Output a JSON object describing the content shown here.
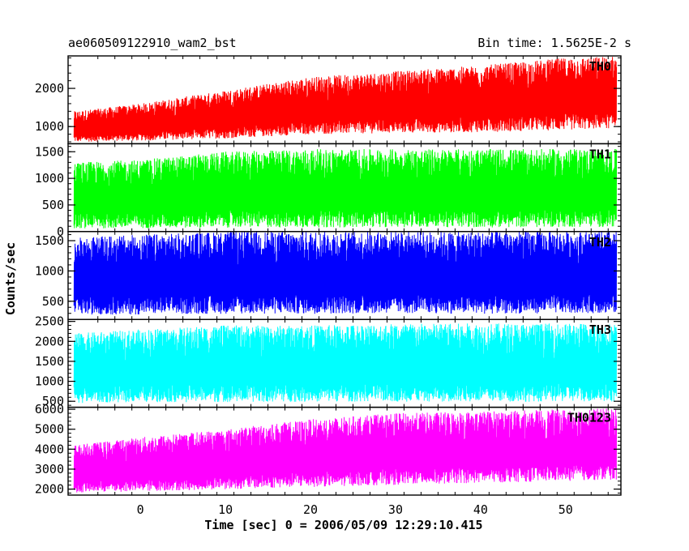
{
  "header": {
    "left_title": "ae060509122910_wam2_bst",
    "right_title": "Bin time: 1.5625E-2 s"
  },
  "axes": {
    "xlabel": "Time [sec] 0 = 2006/05/09 12:29:10.415",
    "ylabel": "Counts/sec"
  },
  "chart_data": {
    "type": "line",
    "x_range": [
      -8.5,
      56.5
    ],
    "x_ticks": [
      0,
      10,
      20,
      30,
      40,
      50
    ],
    "x_tick_labels": [
      "0",
      "10",
      "20",
      "30",
      "40",
      "50"
    ],
    "data_x_range": [
      -7.8,
      56.0
    ],
    "panels": [
      {
        "name": "TH0",
        "color": "#ff0000",
        "ylim": [
          550,
          2850
        ],
        "yticks": [
          1000,
          2000
        ],
        "ytick_labels": [
          "1000",
          "2000"
        ],
        "envelope": {
          "x": [
            -7.8,
            0,
            10,
            20,
            30,
            40,
            50,
            56
          ],
          "low": [
            570,
            600,
            650,
            750,
            780,
            800,
            850,
            900
          ],
          "high": [
            1400,
            1600,
            1950,
            2300,
            2450,
            2600,
            2800,
            2850
          ]
        }
      },
      {
        "name": "TH1",
        "color": "#00ff00",
        "ylim": [
          0,
          1650
        ],
        "yticks": [
          0,
          500,
          1000,
          1500
        ],
        "ytick_labels": [
          "0",
          "500",
          "1000",
          "1500"
        ],
        "envelope": {
          "x": [
            -7.8,
            0,
            10,
            20,
            30,
            40,
            50,
            56
          ],
          "low": [
            20,
            20,
            30,
            30,
            40,
            30,
            40,
            40
          ],
          "high": [
            1300,
            1350,
            1500,
            1550,
            1550,
            1550,
            1550,
            1550
          ]
        }
      },
      {
        "name": "TH2",
        "color": "#0000ff",
        "ylim": [
          200,
          1650
        ],
        "yticks": [
          500,
          1000,
          1500
        ],
        "ytick_labels": [
          "500",
          "1000",
          "1500"
        ],
        "envelope": {
          "x": [
            -7.8,
            0,
            10,
            20,
            30,
            40,
            50,
            56
          ],
          "low": [
            240,
            240,
            250,
            250,
            260,
            250,
            260,
            260
          ],
          "high": [
            1550,
            1600,
            1650,
            1650,
            1650,
            1650,
            1650,
            1650
          ]
        }
      },
      {
        "name": "TH3",
        "color": "#00ffff",
        "ylim": [
          350,
          2550
        ],
        "yticks": [
          500,
          1000,
          1500,
          2000,
          2500
        ],
        "ytick_labels": [
          "500",
          "1000",
          "1500",
          "2000",
          "2500"
        ],
        "envelope": {
          "x": [
            -7.8,
            0,
            10,
            20,
            30,
            40,
            50,
            56
          ],
          "low": [
            400,
            420,
            420,
            430,
            430,
            430,
            430,
            430
          ],
          "high": [
            2200,
            2300,
            2400,
            2400,
            2450,
            2450,
            2450,
            2450
          ]
        }
      },
      {
        "name": "TH0123",
        "color": "#ff00ff",
        "ylim": [
          1700,
          6100
        ],
        "yticks": [
          2000,
          3000,
          4000,
          5000,
          6000
        ],
        "ytick_labels": [
          "2000",
          "3000",
          "4000",
          "5000",
          "6000"
        ],
        "envelope": {
          "x": [
            -7.8,
            0,
            10,
            20,
            30,
            40,
            50,
            56
          ],
          "low": [
            1750,
            1800,
            1900,
            2000,
            2100,
            2200,
            2300,
            2350
          ],
          "high": [
            4200,
            4600,
            5000,
            5500,
            5800,
            5900,
            6000,
            6050
          ]
        }
      }
    ]
  }
}
